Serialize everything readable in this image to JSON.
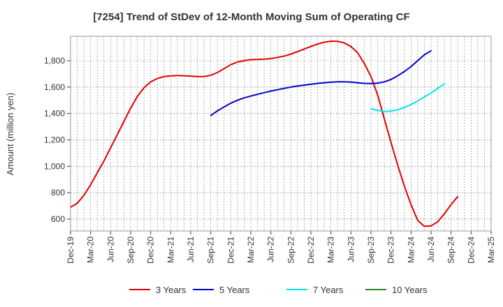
{
  "chart_data": {
    "type": "line",
    "title": "[7254]  Trend of StDev of 12-Month Moving Sum of Operating CF",
    "xlabel": "",
    "ylabel": "Amount (million yen)",
    "x_ticks": [
      "Dec-19",
      "Mar-20",
      "Jun-20",
      "Sep-20",
      "Dec-20",
      "Mar-21",
      "Jun-21",
      "Sep-21",
      "Dec-21",
      "Mar-22",
      "Jun-22",
      "Sep-22",
      "Dec-22",
      "Mar-23",
      "Jun-23",
      "Sep-23",
      "Dec-23",
      "Mar-24",
      "Jun-24",
      "Sep-24",
      "Dec-24",
      "Mar-25"
    ],
    "y_ticks": [
      600,
      800,
      1000,
      1200,
      1400,
      1600,
      1800
    ],
    "y_tick_labels": [
      "600",
      "800",
      "1,000",
      "1,200",
      "1,400",
      "1,600",
      "1,800"
    ],
    "ylim": [
      510,
      1985
    ],
    "grid": true,
    "legend_position": "bottom",
    "series": [
      {
        "name": "3 Years",
        "color": "#e00000",
        "start_index": 0,
        "values": [
          690,
          720,
          780,
          860,
          950,
          1040,
          1140,
          1240,
          1340,
          1440,
          1530,
          1595,
          1640,
          1665,
          1680,
          1685,
          1688,
          1686,
          1683,
          1680,
          1680,
          1690,
          1710,
          1740,
          1770,
          1790,
          1800,
          1808,
          1810,
          1812,
          1816,
          1825,
          1835,
          1850,
          1868,
          1888,
          1908,
          1926,
          1940,
          1948,
          1947,
          1935,
          1908,
          1860,
          1780,
          1680,
          1540,
          1360,
          1180,
          1010,
          850,
          710,
          590,
          545,
          548,
          580,
          640,
          710,
          770
        ]
      },
      {
        "name": "5 Years",
        "color": "#0000cc",
        "start_index": 21,
        "values": [
          1385,
          1420,
          1450,
          1478,
          1500,
          1518,
          1532,
          1545,
          1558,
          1570,
          1580,
          1590,
          1600,
          1608,
          1615,
          1622,
          1628,
          1633,
          1637,
          1640,
          1640,
          1638,
          1633,
          1628,
          1627,
          1630,
          1640,
          1658,
          1685,
          1718,
          1755,
          1800,
          1845,
          1875
        ]
      },
      {
        "name": "7 Years",
        "color": "#00e5ee",
        "start_index": 45,
        "values": [
          1435,
          1423,
          1415,
          1418,
          1428,
          1445,
          1468,
          1495,
          1525,
          1555,
          1590,
          1625
        ]
      },
      {
        "name": "10 Years",
        "color": "#228b22",
        "start_index": 0,
        "values": []
      }
    ]
  }
}
